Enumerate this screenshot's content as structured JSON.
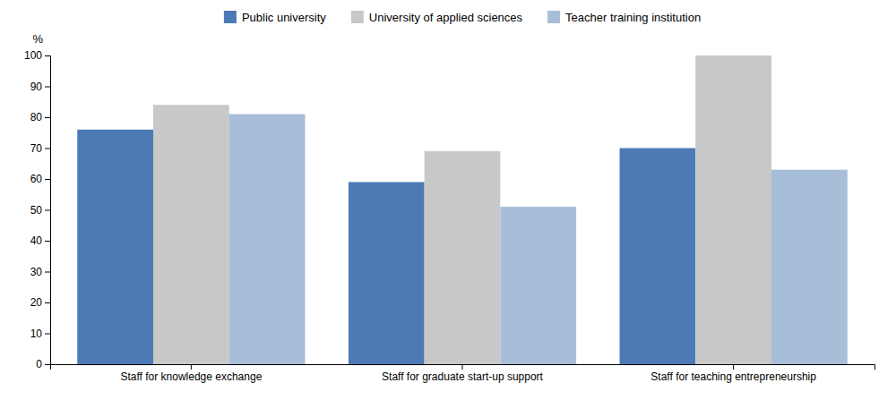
{
  "chart_data": {
    "type": "bar",
    "categories": [
      "Staff for knowledge exchange",
      "Staff for graduate start-up support",
      "Staff for teaching entrepreneurship"
    ],
    "series": [
      {
        "name": "Public university",
        "values": [
          76,
          59,
          70
        ],
        "color": "#4d7ab5"
      },
      {
        "name": "University of applied sciences",
        "values": [
          84,
          69,
          100
        ],
        "color": "#c8c8c8"
      },
      {
        "name": "Teacher training institution",
        "values": [
          81,
          51,
          63
        ],
        "color": "#a8bdd8"
      }
    ],
    "ylabel": "%",
    "ylim": [
      0,
      100
    ],
    "yticks": [
      0,
      10,
      20,
      30,
      40,
      50,
      60,
      70,
      80,
      90,
      100
    ],
    "grid": false,
    "legend": "top"
  }
}
